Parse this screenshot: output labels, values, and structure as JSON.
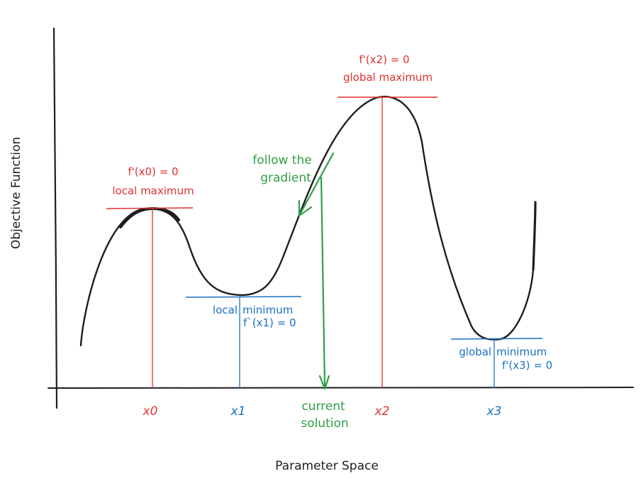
{
  "title": "",
  "axes": {
    "x_label": "Parameter Space",
    "y_label": "Objective Function"
  },
  "ticks": {
    "x0": "x0",
    "x1": "x1",
    "x2": "x2",
    "x3": "x3"
  },
  "annotations": {
    "x0_derivative": "f'(x0) = 0",
    "x0_type": "local maximum",
    "x1_type_left": "local",
    "x1_type_right": "minimum",
    "x1_derivative": "f`(x1) = 0",
    "x2_derivative": "f'(x2) = 0",
    "x2_type": "global maximum",
    "x3_type_left": "global",
    "x3_type_right": "minimum",
    "x3_derivative": "f'(x3) = 0",
    "gradient_line1": "follow the",
    "gradient_line2": "gradient",
    "current_line1": "current",
    "current_line2": "solution"
  },
  "colors": {
    "ink": "#1e1e1e",
    "maximum": "#e03131",
    "minimum": "#1971c2",
    "gradient": "#2f9e44"
  }
}
